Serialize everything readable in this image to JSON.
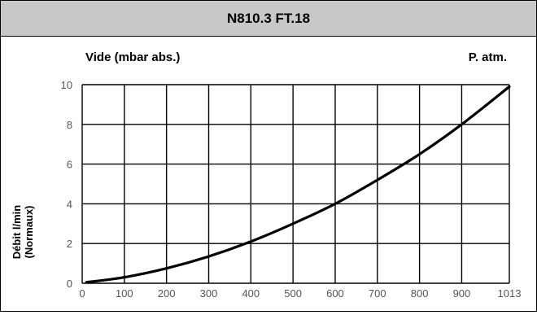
{
  "chart_data": {
    "type": "line",
    "title": "N810.3 FT.18",
    "top_left_label": "Vide (mbar abs.)",
    "top_right_label": "P. atm.",
    "ylabel_line1": "Débit l/min",
    "ylabel_line2": "(Normaux)",
    "x_ticks": [
      0,
      100,
      200,
      300,
      400,
      500,
      600,
      700,
      800,
      900,
      1013
    ],
    "y_ticks": [
      0,
      2,
      4,
      6,
      8,
      10
    ],
    "xlim": [
      0,
      1013
    ],
    "ylim": [
      0,
      10
    ],
    "grid": true,
    "series": [
      {
        "x": [
          10,
          100,
          200,
          300,
          400,
          500,
          600,
          700,
          800,
          900,
          1013
        ],
        "y": [
          0.05,
          0.3,
          0.75,
          1.35,
          2.1,
          3.0,
          4.0,
          5.2,
          6.5,
          8.0,
          9.9
        ]
      }
    ],
    "colors": {
      "line": "#000000",
      "grid": "#000000",
      "tick_label": "#555555"
    }
  }
}
